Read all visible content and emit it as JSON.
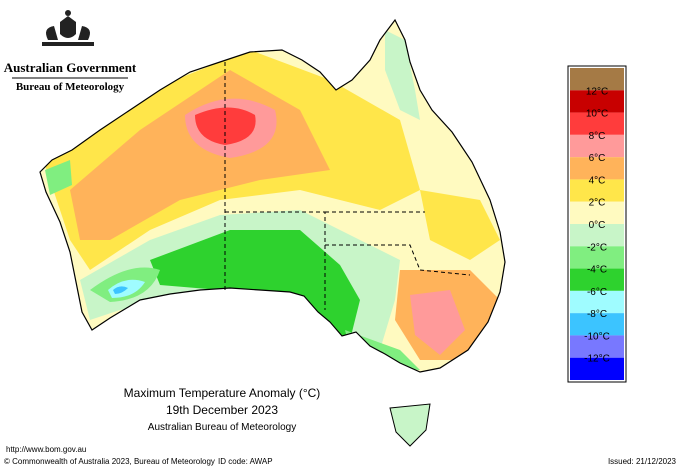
{
  "header": {
    "government": "Australian Government",
    "bureau": "Bureau of Meteorology"
  },
  "map": {
    "title": "Maximum Temperature Anomaly (°C)",
    "date": "19th December 2023",
    "source": "Australian Bureau of Meteorology"
  },
  "legend": {
    "colors": [
      "#a57a45",
      "#c80000",
      "#ff3c3c",
      "#ff9a9a",
      "#ffb35a",
      "#ffe64a",
      "#fffac0",
      "#c8f5c8",
      "#80ee80",
      "#2ed22e",
      "#9ffcff",
      "#3cc4ff",
      "#7878ff",
      "#0000ff"
    ],
    "labels": [
      "12°C",
      "10°C",
      "8°C",
      "6°C",
      "4°C",
      "2°C",
      "0°C",
      "-2°C",
      "-4°C",
      "-6°C",
      "-8°C",
      "-10°C",
      "-12°C"
    ]
  },
  "footer": {
    "url": "http://www.bom.gov.au",
    "copyright": "© Commonwealth of Australia 2023, Bureau of Meteorology",
    "id_code": "ID code: AWAP",
    "issued": "Issued: 21/12/2023"
  }
}
